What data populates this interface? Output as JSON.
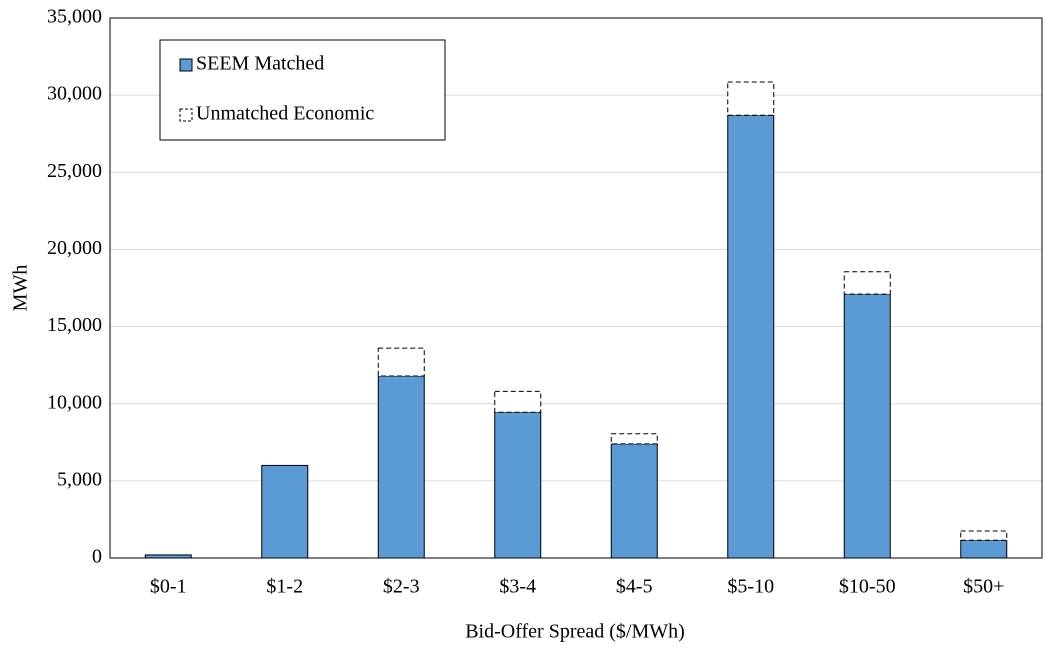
{
  "chart_data": {
    "type": "stacked_bar",
    "x_label": "Bid-Offer Spread ($/MWh)",
    "y_label": "MWh",
    "categories": [
      "$0-1",
      "$1-2",
      "$2-3",
      "$3-4",
      "$4-5",
      "$5-10",
      "$10-50",
      "$50+"
    ],
    "series": [
      {
        "name": "SEEM Matched",
        "color": "#5b9bd5",
        "style": "solid",
        "values": [
          200,
          6000,
          11800,
          9450,
          7400,
          28700,
          17100,
          1150
        ]
      },
      {
        "name": "Unmatched Economic",
        "color": "#ffffff",
        "style": "dashed",
        "values": [
          0,
          0,
          1800,
          1350,
          650,
          2150,
          1450,
          600
        ]
      }
    ],
    "ylim": [
      0,
      35000
    ],
    "yticks": [
      0,
      {
        "value": 5000,
        "label": "5,000"
      },
      {
        "value": 10000,
        "label": "10,000"
      },
      {
        "value": 15000,
        "label": "15,000"
      },
      {
        "value": 20000,
        "label": "20,000"
      },
      {
        "value": 25000,
        "label": "25,000"
      },
      {
        "value": 30000,
        "label": "30,000"
      },
      {
        "value": 35000,
        "label": "35,000"
      }
    ],
    "grid": true,
    "legend": "top-left"
  }
}
